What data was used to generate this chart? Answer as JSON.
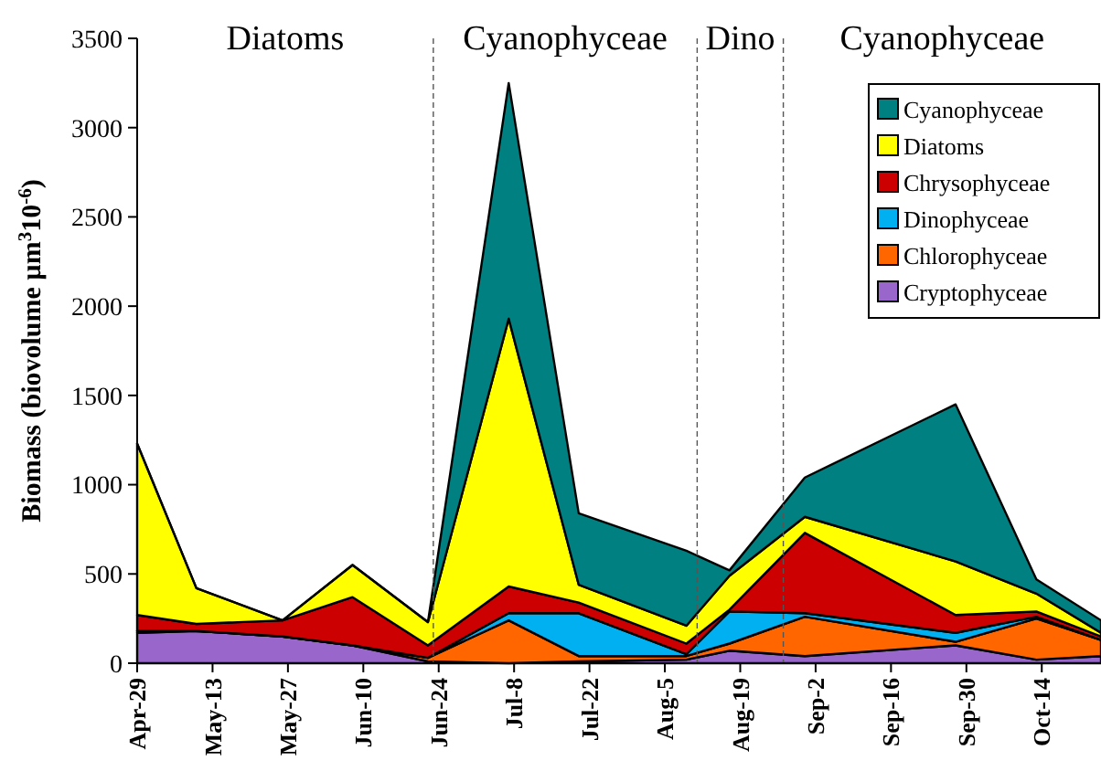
{
  "chart_data": {
    "type": "area",
    "stacked": true,
    "ylabel": "Biomass (biovolume µm$^{3}$10$^{-6}$)",
    "x": [
      "--04-29",
      "--05-10",
      "--05-26",
      "--06-08",
      "--06-22",
      "--07-07",
      "--07-20",
      "--08-09",
      "--08-17",
      "--08-31",
      "--09-28",
      "--10-13",
      "--10-25"
    ],
    "xlim": [
      "--04-29",
      "--10-25"
    ],
    "xticks": [
      {
        "value": "--04-29",
        "label": "Apr-29"
      },
      {
        "value": "--05-13",
        "label": "May-13"
      },
      {
        "value": "--05-27",
        "label": "May-27"
      },
      {
        "value": "--06-10",
        "label": "Jun-10"
      },
      {
        "value": "--06-24",
        "label": "Jun-24"
      },
      {
        "value": "--07-08",
        "label": "Jul-8"
      },
      {
        "value": "--07-22",
        "label": "Jul-22"
      },
      {
        "value": "--08-05",
        "label": "Aug-5"
      },
      {
        "value": "--08-19",
        "label": "Aug-19"
      },
      {
        "value": "--09-02",
        "label": "Sep-2"
      },
      {
        "value": "--09-16",
        "label": "Sep-16"
      },
      {
        "value": "--09-30",
        "label": "Sep-30"
      },
      {
        "value": "--10-14",
        "label": "Oct-14"
      }
    ],
    "ylim": [
      0,
      3500
    ],
    "yticks": [
      0,
      500,
      1000,
      1500,
      2000,
      2500,
      3000,
      3500
    ],
    "series": [
      {
        "name": "Cryptophyceae",
        "color": "#9966cc",
        "values": [
          170,
          180,
          150,
          100,
          10,
          0,
          10,
          20,
          70,
          40,
          100,
          20,
          40
        ]
      },
      {
        "name": "Chlorophyceae",
        "color": "#ff6600",
        "values": [
          10,
          0,
          0,
          0,
          20,
          240,
          30,
          20,
          40,
          220,
          20,
          230,
          90
        ]
      },
      {
        "name": "Dinophyceae",
        "color": "#00b0f0",
        "values": [
          0,
          0,
          0,
          0,
          0,
          40,
          240,
          10,
          180,
          20,
          50,
          10,
          0
        ]
      },
      {
        "name": "Chrysophyceae",
        "color": "#cc0000",
        "values": [
          90,
          40,
          90,
          270,
          70,
          150,
          60,
          60,
          10,
          450,
          100,
          30,
          20
        ]
      },
      {
        "name": "Diatoms",
        "color": "#ffff00",
        "values": [
          960,
          200,
          0,
          180,
          130,
          1500,
          100,
          100,
          190,
          90,
          300,
          100,
          20
        ]
      },
      {
        "name": "Cyanophyceae",
        "color": "#008080",
        "values": [
          0,
          0,
          0,
          0,
          0,
          1320,
          400,
          420,
          30,
          220,
          880,
          80,
          70
        ]
      }
    ],
    "ref_lines": [
      {
        "axis": "x",
        "value": "--06-23",
        "line_style": "dashed"
      },
      {
        "axis": "x",
        "value": "--08-11",
        "line_style": "dashed"
      },
      {
        "axis": "x",
        "value": "--08-27",
        "line_style": "dashed"
      }
    ],
    "annotations": [
      "Diatoms",
      "Cyanophyceae",
      "Dino",
      "Cyanophyceae"
    ],
    "legend": "top right",
    "grid": false
  }
}
